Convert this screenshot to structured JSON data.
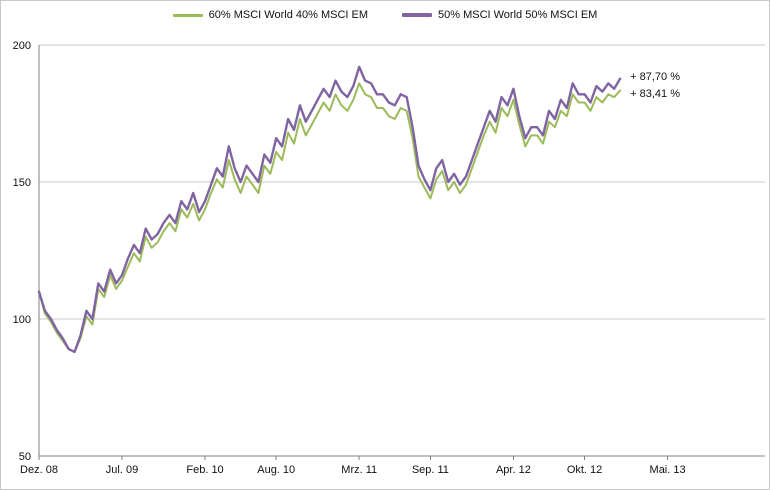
{
  "legend": {
    "items": [
      {
        "label": "60% MSCI World 40% MSCI EM",
        "color": "#9BBB59"
      },
      {
        "label": "50% MSCI World  50% MSCI EM",
        "color": "#8064A2"
      }
    ]
  },
  "annotations": {
    "top": "+ 87,70 %",
    "bottom": "+ 83,41 %"
  },
  "chart_data": {
    "type": "line",
    "title": "",
    "xlabel": "",
    "ylabel": "",
    "ylim": [
      50,
      200
    ],
    "y_ticks": [
      200,
      150,
      100,
      50
    ],
    "grid": "horizontal",
    "legend_position": "top-center",
    "x_unit": "months since Dez. 08",
    "x_start_month": 0,
    "x_step_months": 0.5,
    "x_ticks": [
      {
        "label": "Dez. 08",
        "month": 0
      },
      {
        "label": "Jul. 09",
        "month": 7
      },
      {
        "label": "Feb. 10",
        "month": 14
      },
      {
        "label": "Aug. 10",
        "month": 20
      },
      {
        "label": "Mrz. 11",
        "month": 27
      },
      {
        "label": "Sep. 11",
        "month": 33
      },
      {
        "label": "Apr. 12",
        "month": 40
      },
      {
        "label": "Okt. 12",
        "month": 46
      },
      {
        "label": "Mai. 13",
        "month": 53
      }
    ],
    "series": [
      {
        "name": "60% MSCI World 40% MSCI EM",
        "color": "#9BBB59",
        "stroke_width": 2,
        "end_label": "+ 83,41 %",
        "end_value_pct": 83.41,
        "values": [
          110,
          102,
          99,
          95,
          92,
          89,
          88,
          93,
          101,
          98,
          111,
          108,
          116,
          111,
          114,
          119,
          124,
          121,
          130,
          126,
          128,
          132,
          135,
          132,
          140,
          137,
          142,
          136,
          140,
          146,
          151,
          148,
          158,
          151,
          146,
          152,
          149,
          146,
          156,
          153,
          161,
          158,
          168,
          164,
          173,
          167,
          171,
          175,
          179,
          176,
          182,
          178,
          176,
          180,
          186,
          182,
          181,
          177,
          177,
          174,
          173,
          177,
          176,
          166,
          152,
          148,
          144,
          151,
          154,
          147,
          150,
          146,
          149,
          155,
          161,
          167,
          172,
          168,
          177,
          174,
          180,
          171,
          163,
          167,
          167,
          164,
          172,
          170,
          176,
          174,
          182,
          179,
          179,
          176,
          181,
          179,
          182,
          181,
          183.41
        ]
      },
      {
        "name": "50% MSCI World  50% MSCI EM",
        "color": "#8064A2",
        "stroke_width": 2.4,
        "end_label": "+ 87,70 %",
        "end_value_pct": 87.7,
        "values": [
          110,
          103,
          100,
          96,
          93,
          89,
          88,
          94,
          103,
          100,
          113,
          110,
          118,
          113,
          116,
          122,
          127,
          124,
          133,
          129,
          131,
          135,
          138,
          135,
          143,
          140,
          146,
          139,
          143,
          149,
          155,
          152,
          163,
          155,
          150,
          156,
          153,
          150,
          160,
          157,
          166,
          163,
          173,
          169,
          178,
          172,
          176,
          180,
          184,
          181,
          187,
          183,
          181,
          185,
          192,
          187,
          186,
          182,
          182,
          179,
          178,
          182,
          181,
          170,
          156,
          151,
          147,
          155,
          158,
          150,
          153,
          149,
          152,
          158,
          164,
          170,
          176,
          172,
          181,
          178,
          184,
          174,
          166,
          170,
          170,
          167,
          176,
          173,
          180,
          177,
          186,
          182,
          182,
          179,
          185,
          183,
          186,
          184,
          187.7
        ]
      }
    ],
    "colors": {
      "gridline": "#C9C9C9",
      "axis": "#808080",
      "text": "#111111"
    }
  }
}
